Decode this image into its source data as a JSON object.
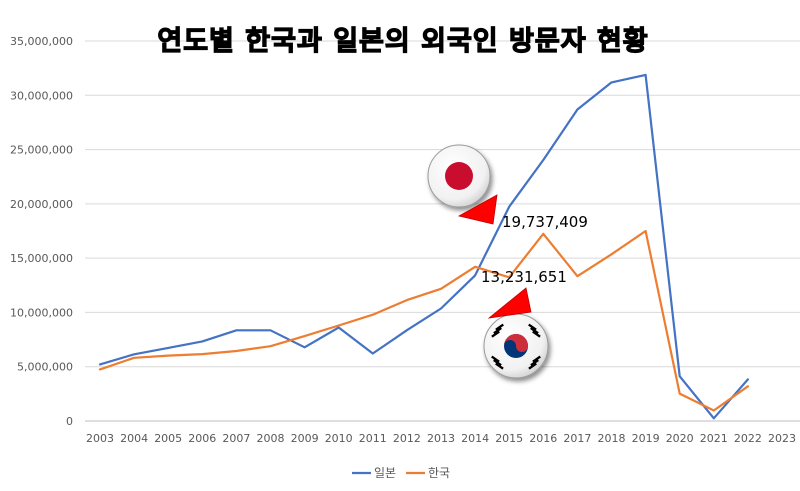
{
  "chart_data": {
    "type": "line",
    "title": "연도별 한국과 일본의 외국인 방문자 현황",
    "x": [
      "2003",
      "2004",
      "2005",
      "2006",
      "2007",
      "2008",
      "2009",
      "2010",
      "2011",
      "2012",
      "2013",
      "2014",
      "2015",
      "2016",
      "2017",
      "2018",
      "2019",
      "2020",
      "2021",
      "2022",
      "2023"
    ],
    "yticks": [
      "0",
      "5,000,000",
      "10,000,000",
      "15,000,000",
      "20,000,000",
      "25,000,000",
      "30,000,000",
      "35,000,000"
    ],
    "ylim": [
      0,
      35000000
    ],
    "grid": true,
    "legend_position": "bottom",
    "series": [
      {
        "name": "일본",
        "color": "#4472C4",
        "values": [
          5210000,
          6140000,
          6730000,
          7330000,
          8350000,
          8350000,
          6790000,
          8610000,
          6220000,
          8360000,
          10360000,
          13410000,
          19737409,
          24040000,
          28690000,
          31190000,
          31880000,
          4120000,
          250000,
          3830000,
          null
        ]
      },
      {
        "name": "한국",
        "color": "#ED7D31",
        "values": [
          4750000,
          5820000,
          6020000,
          6160000,
          6450000,
          6890000,
          7820000,
          8800000,
          9790000,
          11140000,
          12180000,
          14200000,
          13231651,
          17240000,
          13340000,
          15350000,
          17500000,
          2520000,
          970000,
          3200000,
          null
        ]
      }
    ],
    "annotations": [
      {
        "text": "19,737,409",
        "year": "2015",
        "series": "일본"
      },
      {
        "text": "13,231,651",
        "year": "2015",
        "series": "한국"
      }
    ]
  },
  "icons": {
    "japan_flag": "japan-flag-icon",
    "korea_flag": "korea-flag-icon",
    "arrow_color": "#FF0000"
  }
}
